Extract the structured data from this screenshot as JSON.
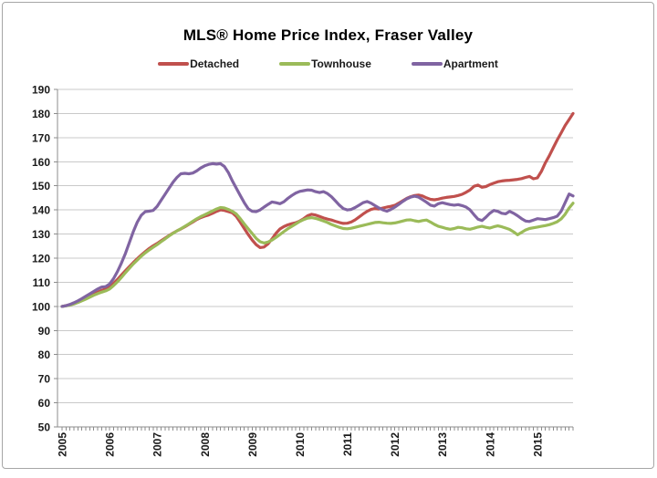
{
  "chart_data": {
    "type": "line",
    "title": "MLS® Home Price Index, Fraser Valley",
    "x_unit": "month",
    "x_start": "2005-01",
    "x_end": "2015-10",
    "x_tick_labels": [
      "2005",
      "2006",
      "2007",
      "2008",
      "2009",
      "2010",
      "2011",
      "2012",
      "2013",
      "2014",
      "2015"
    ],
    "y_tick_labels": [
      "190",
      "180",
      "170",
      "160",
      "150",
      "140",
      "130",
      "120",
      "110",
      "100",
      "90",
      "80",
      "70",
      "60",
      "50"
    ],
    "y_axis": {
      "min": 50,
      "max": 190,
      "step": 10
    },
    "grid": true,
    "legend_position": "top",
    "series": [
      {
        "name": "Detached",
        "color": "#C0504D",
        "values": [
          100,
          100.3,
          100.7,
          101.2,
          101.9,
          102.7,
          103.5,
          104.3,
          105.1,
          105.9,
          106.6,
          107.2,
          108.0,
          109.5,
          111.2,
          113.0,
          114.8,
          116.5,
          118.2,
          119.8,
          121.3,
          122.7,
          124.0,
          125.1,
          126.1,
          127.2,
          128.3,
          129.4,
          130.4,
          131.3,
          132.1,
          133.0,
          134.0,
          135.0,
          136.0,
          136.8,
          137.4,
          137.9,
          138.6,
          139.4,
          140.0,
          139.8,
          139.3,
          138.8,
          137.3,
          134.9,
          132.3,
          129.8,
          127.5,
          125.6,
          124.4,
          124.6,
          125.9,
          128.0,
          130.3,
          132.1,
          133.1,
          133.8,
          134.3,
          134.7,
          135.4,
          136.4,
          137.6,
          138.2,
          137.9,
          137.3,
          136.7,
          136.2,
          135.8,
          135.3,
          134.8,
          134.4,
          134.5,
          135.0,
          135.9,
          137.1,
          138.3,
          139.4,
          140.2,
          140.6,
          140.4,
          140.8,
          141.2,
          141.5,
          141.9,
          142.8,
          143.8,
          144.8,
          145.5,
          146.0,
          146.2,
          145.8,
          145.0,
          144.4,
          144.2,
          144.5,
          144.9,
          145.2,
          145.4,
          145.6,
          146.0,
          146.5,
          147.3,
          148.3,
          149.8,
          150.3,
          149.4,
          149.7,
          150.5,
          151.1,
          151.7,
          152.0,
          152.2,
          152.3,
          152.5,
          152.7,
          153.0,
          153.5,
          153.9,
          152.9,
          153.3,
          156.0,
          159.5,
          162.5,
          165.8,
          169.0,
          172.0,
          175.0,
          177.5,
          180.0
        ]
      },
      {
        "name": "Townhouse",
        "color": "#9BBB59",
        "values": [
          100,
          100.2,
          100.5,
          101.0,
          101.6,
          102.3,
          103.0,
          103.8,
          104.6,
          105.3,
          105.9,
          106.4,
          107.2,
          108.6,
          110.2,
          112.0,
          114.0,
          115.8,
          117.6,
          119.2,
          120.8,
          122.2,
          123.4,
          124.5,
          125.6,
          126.8,
          128.0,
          129.2,
          130.3,
          131.3,
          132.2,
          133.2,
          134.2,
          135.3,
          136.3,
          137.2,
          138.0,
          138.8,
          139.6,
          140.4,
          141.0,
          140.8,
          140.2,
          139.4,
          138.3,
          136.4,
          134.2,
          132.2,
          130.2,
          128.2,
          126.8,
          126.3,
          126.7,
          127.5,
          128.6,
          129.8,
          131.0,
          132.2,
          133.2,
          134.2,
          135.2,
          136.0,
          136.6,
          136.8,
          136.5,
          136.0,
          135.4,
          134.8,
          134.0,
          133.4,
          132.8,
          132.3,
          132.2,
          132.4,
          132.8,
          133.2,
          133.6,
          134.0,
          134.4,
          134.8,
          134.9,
          134.7,
          134.5,
          134.4,
          134.6,
          135.0,
          135.4,
          135.8,
          135.9,
          135.5,
          135.2,
          135.6,
          135.8,
          135.0,
          134.0,
          133.2,
          132.8,
          132.3,
          132.0,
          132.3,
          132.8,
          132.6,
          132.2,
          132.0,
          132.4,
          132.9,
          133.2,
          132.8,
          132.5,
          133.0,
          133.4,
          133.0,
          132.5,
          131.9,
          130.9,
          129.7,
          130.7,
          131.7,
          132.3,
          132.6,
          132.9,
          133.2,
          133.5,
          133.9,
          134.4,
          135.1,
          136.3,
          138.2,
          140.8,
          142.8
        ]
      },
      {
        "name": "Apartment",
        "color": "#8064A2",
        "values": [
          100,
          100.3,
          100.8,
          101.5,
          102.3,
          103.2,
          104.2,
          105.2,
          106.2,
          107.2,
          108.0,
          108.2,
          109.3,
          111.5,
          114.5,
          118.0,
          122.0,
          126.5,
          131.0,
          135.0,
          137.8,
          139.3,
          139.5,
          139.8,
          141.5,
          144.0,
          146.5,
          149.0,
          151.5,
          153.5,
          155.0,
          155.2,
          155.0,
          155.3,
          156.2,
          157.4,
          158.3,
          158.9,
          159.2,
          159.0,
          159.2,
          158.0,
          155.5,
          152.0,
          149.0,
          146.0,
          143.0,
          140.5,
          139.4,
          139.3,
          140.0,
          141.2,
          142.3,
          143.3,
          143.0,
          142.6,
          143.4,
          144.8,
          146.0,
          147.0,
          147.7,
          148.0,
          148.3,
          148.2,
          147.6,
          147.2,
          147.6,
          146.8,
          145.5,
          143.8,
          142.0,
          140.6,
          140.0,
          140.2,
          141.0,
          142.0,
          143.0,
          143.5,
          142.8,
          141.8,
          140.8,
          140.0,
          139.5,
          140.2,
          141.2,
          142.3,
          143.5,
          144.6,
          145.3,
          145.7,
          145.3,
          144.3,
          143.2,
          142.0,
          141.6,
          142.6,
          143.0,
          142.6,
          142.2,
          142.0,
          142.2,
          141.8,
          141.2,
          140.0,
          138.0,
          136.2,
          135.6,
          137.0,
          138.6,
          139.8,
          139.4,
          138.6,
          138.4,
          139.4,
          138.6,
          137.6,
          136.4,
          135.4,
          135.2,
          135.8,
          136.4,
          136.2,
          136.0,
          136.4,
          136.8,
          137.4,
          139.5,
          143.0,
          146.6,
          145.8
        ]
      }
    ]
  }
}
